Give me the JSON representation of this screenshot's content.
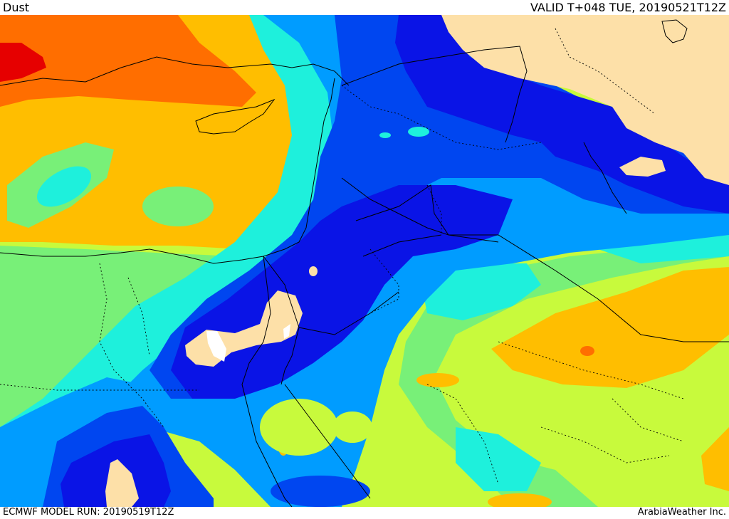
{
  "header": {
    "field_name": "Dust",
    "valid_time": "VALID T+048 TUE, 20190521T12Z"
  },
  "footer": {
    "model_run": "ECMWF MODEL RUN: 20190519T12Z",
    "credit": "ArabiaWeather Inc."
  },
  "palette": {
    "land_beige": "#fde0a8",
    "blue_deep": "#0a14e6",
    "blue_dark": "#0046f0",
    "blue_mid": "#009cff",
    "cyan": "#1ef0dc",
    "green_light": "#78f078",
    "yellow_green": "#c8fa3c",
    "orange_yellow": "#ffbe00",
    "orange": "#ff6e00",
    "red": "#e60000",
    "white": "#ffffff"
  }
}
